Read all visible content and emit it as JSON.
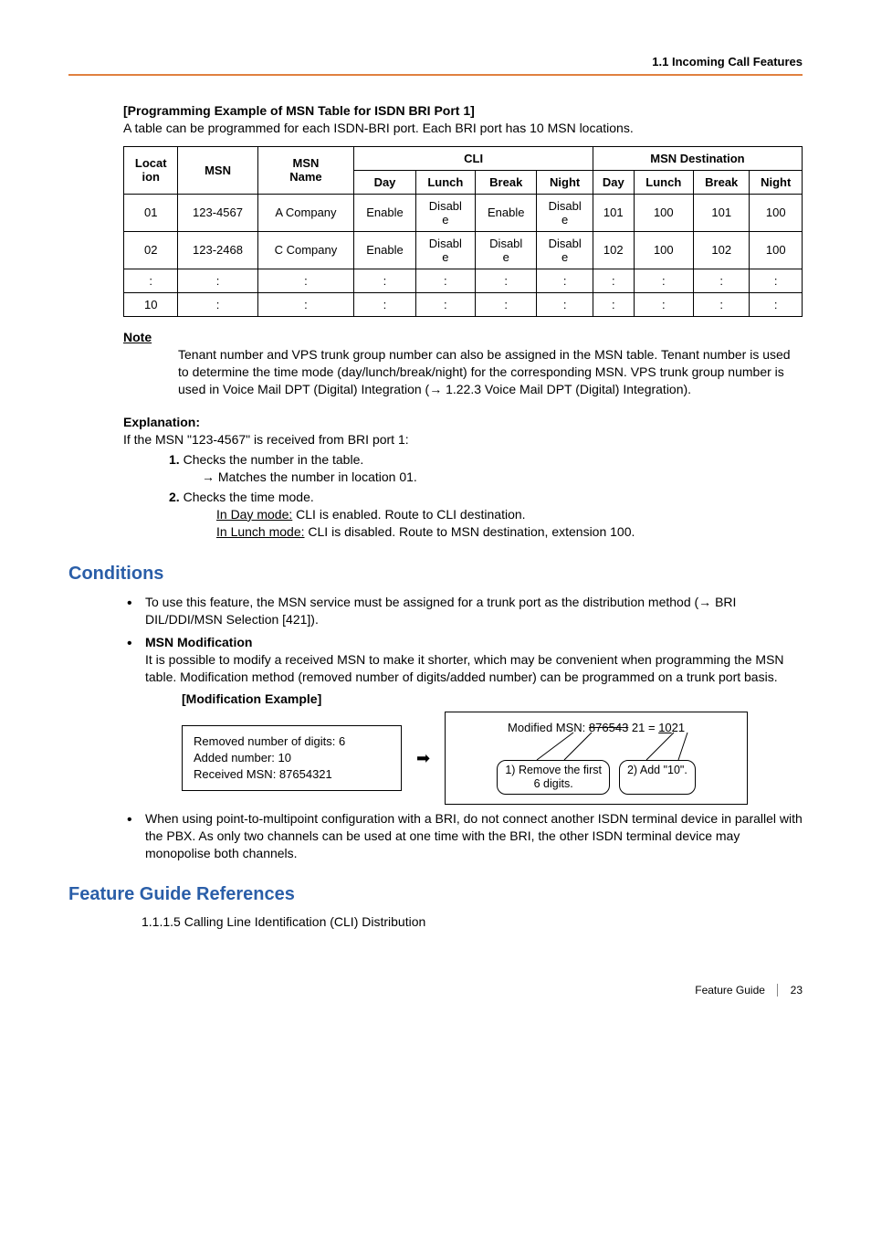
{
  "header": {
    "section": "1.1 Incoming Call Features"
  },
  "programming_example": {
    "title": "[Programming Example of MSN Table for ISDN BRI Port 1]",
    "intro": "A table can be programmed for each ISDN-BRI port. Each BRI port has 10 MSN locations."
  },
  "table": {
    "head": {
      "location": "Locat\nion",
      "msn": "MSN",
      "msn_name": "MSN\nName",
      "cli": "CLI",
      "msn_dest": "MSN Destination",
      "day": "Day",
      "lunch": "Lunch",
      "break": "Break",
      "night": "Night"
    },
    "rows": [
      {
        "loc": "01",
        "msn": "123-4567",
        "name": "A Company",
        "cli_day": "Enable",
        "cli_lunch": "Disabl\ne",
        "cli_break": "Enable",
        "cli_night": "Disabl\ne",
        "d_day": "101",
        "d_lunch": "100",
        "d_break": "101",
        "d_night": "100"
      },
      {
        "loc": "02",
        "msn": "123-2468",
        "name": "C Company",
        "cli_day": "Enable",
        "cli_lunch": "Disabl\ne",
        "cli_break": "Disabl\ne",
        "cli_night": "Disabl\ne",
        "d_day": "102",
        "d_lunch": "100",
        "d_break": "102",
        "d_night": "100"
      },
      {
        "loc": ":",
        "msn": ":",
        "name": ":",
        "cli_day": ":",
        "cli_lunch": ":",
        "cli_break": ":",
        "cli_night": ":",
        "d_day": ":",
        "d_lunch": ":",
        "d_break": ":",
        "d_night": ":"
      },
      {
        "loc": "10",
        "msn": ":",
        "name": ":",
        "cli_day": ":",
        "cli_lunch": ":",
        "cli_break": ":",
        "cli_night": ":",
        "d_day": ":",
        "d_lunch": ":",
        "d_break": ":",
        "d_night": ":"
      }
    ]
  },
  "note": {
    "label": "Note",
    "body": "Tenant number and VPS trunk group number can also be assigned in the MSN table. Tenant number is used to determine the time mode (day/lunch/break/night) for the corresponding MSN. VPS trunk group number is used in Voice Mail DPT (Digital) Integration (→ 1.22.3 Voice Mail DPT (Digital) Integration)."
  },
  "explanation": {
    "label": "Explanation:",
    "intro": "If the MSN \"123-4567\" is received from BRI port 1:",
    "step1": "Checks the number in the table.",
    "step1a": "→ Matches the number in location 01.",
    "step2": "Checks the time mode.",
    "step2a_day_label": "In Day mode:",
    "step2a_day_text": " CLI is enabled. Route to CLI destination.",
    "step2a_lunch_label": "In Lunch mode:",
    "step2a_lunch_text": " CLI is disabled. Route to MSN destination, extension 100."
  },
  "conditions": {
    "heading": "Conditions",
    "items": [
      {
        "text": "To use this feature, the MSN service must be assigned for a trunk port as the distribution method (→ BRI DIL/DDI/MSN Selection [421])."
      },
      {
        "title": "MSN Modification",
        "text": "It is possible to modify a received MSN to make it shorter, which may be convenient when programming the MSN table. Modification method (removed number of digits/added number) can be programmed on a trunk port basis."
      },
      {
        "text": "When using point-to-multipoint configuration with a BRI, do not connect another ISDN terminal device in parallel with the PBX. As only two channels can be used at one time with the BRI, the other ISDN terminal device may monopolise both channels."
      }
    ]
  },
  "modification": {
    "title": "[Modification Example]",
    "left": {
      "l1": "Removed number of digits: 6",
      "l2": "Added number: 10",
      "l3": "Received MSN: 87654321"
    },
    "right": {
      "prefix": "Modified MSN:  ",
      "strike": "876543",
      "mid": " 21 = ",
      "under": "10",
      "tail": "21",
      "c1": "1) Remove the first\n    6 digits.",
      "c2": "2) Add \"10\"."
    }
  },
  "references": {
    "heading": "Feature Guide References",
    "item": "1.1.1.5 Calling Line Identification (CLI) Distribution"
  },
  "footer": {
    "label": "Feature Guide",
    "page": "23"
  },
  "colors": {
    "header_rule": "#e08040",
    "section_heading": "#2a5ea8",
    "text": "#000000",
    "background": "#ffffff",
    "table_border": "#000000"
  }
}
